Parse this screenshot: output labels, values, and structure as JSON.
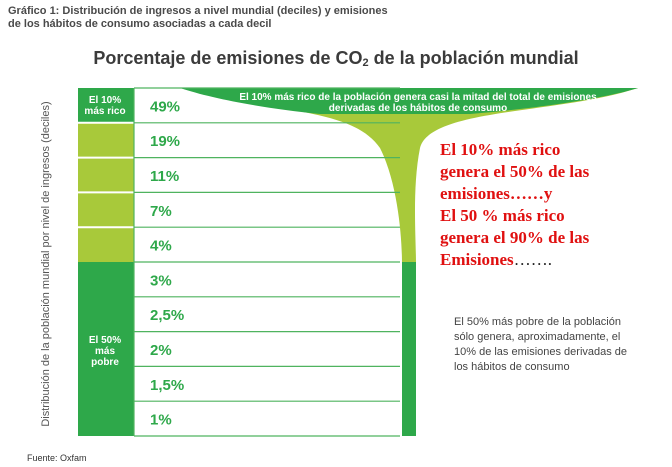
{
  "header": {
    "figure_title": "Gráfico 1: Distribución de ingresos a nivel mundial (deciles) y emisiones\nde los hábitos de consumo asociadas a cada decil"
  },
  "chart_data": {
    "type": "table",
    "title_prefix": "Porcentaje de emisiones de CO",
    "title_sub": "2",
    "title_suffix": " de la población mundial",
    "ylabel": "Distribución de la población mundial por nivel de ingresos (deciles)",
    "groups": {
      "rich_label": "El 10%\nmás rico",
      "poor_label": "El 50%\nmás\npobre"
    },
    "deciles": [
      {
        "label": "49%",
        "value": 49
      },
      {
        "label": "19%",
        "value": 19
      },
      {
        "label": "11%",
        "value": 11
      },
      {
        "label": "7%",
        "value": 7
      },
      {
        "label": "4%",
        "value": 4
      },
      {
        "label": "3%",
        "value": 3
      },
      {
        "label": "2,5%",
        "value": 2.5
      },
      {
        "label": "2%",
        "value": 2
      },
      {
        "label": "1,5%",
        "value": 1.5
      },
      {
        "label": "1%",
        "value": 1
      }
    ],
    "annotations": {
      "rich": "El 10% más rico de la población genera casi la mitad del total de emisiones derivadas de los hábitos de consumo",
      "poor": "El 50% más pobre de la población sólo genera, aproximadamente, el 10% de las emisiones derivadas de los hábitos de consumo"
    },
    "colors": {
      "dark_green": "#2ea84a",
      "light_green": "#a8c93a",
      "row_line": "#4fb35f",
      "text_dark": "#333333"
    }
  },
  "overlay_note": {
    "line1": "El 10% más rico",
    "line2": "genera el 50% de las",
    "line3": "emisiones……y",
    "line4": "El 50 % más rico",
    "line5": "genera el 90% de las",
    "line6_text": "Emisiones",
    "line6_dots": "……."
  },
  "source": "Fuente: Oxfam"
}
